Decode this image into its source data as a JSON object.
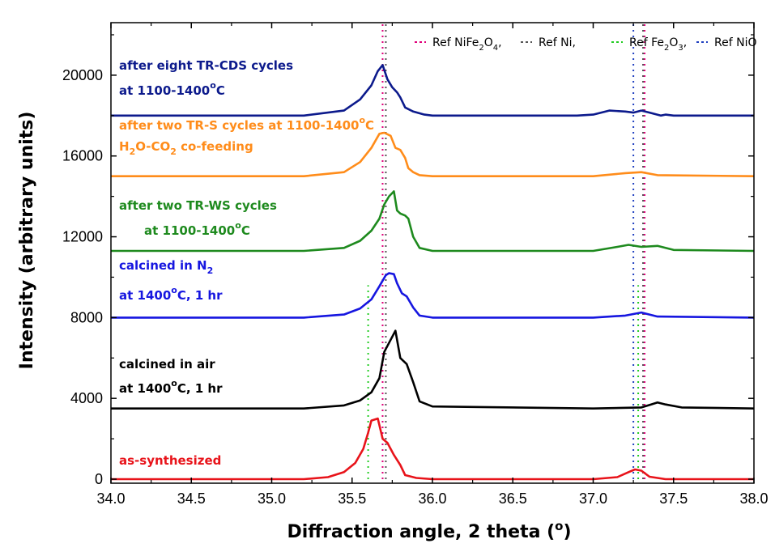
{
  "chart_data": {
    "type": "line",
    "xlabel": "Diffraction angle, 2 theta (°)",
    "ylabel": "Intensity (arbitrary units)",
    "xlim": [
      34.0,
      38.0
    ],
    "ylim": [
      -200,
      22600
    ],
    "xticks": [
      "34.0",
      "34.5",
      "35.0",
      "35.5",
      "36.0",
      "36.5",
      "37.0",
      "37.5",
      "38.0"
    ],
    "yticks": [
      "0",
      "4000",
      "8000",
      "12000",
      "16000",
      "20000"
    ],
    "grid": false,
    "legend_position": "top-right",
    "reference_lines": [
      {
        "name": "Ref NiFe2O4,",
        "color": "#e0007a",
        "positions": [
          35.69,
          37.32
        ]
      },
      {
        "name": "Ref Ni,",
        "color": "#555555",
        "positions": [
          35.71,
          37.31
        ]
      },
      {
        "name": "Ref Fe2O3,",
        "color": "#22cc22",
        "positions": [
          35.6,
          37.28
        ],
        "y_range": [
          0,
          9600
        ]
      },
      {
        "name": "Ref NiO",
        "color": "#2040c0",
        "positions": [
          37.25
        ]
      }
    ],
    "series": [
      {
        "name": "as-synthesized",
        "color": "#e8131a",
        "x": [
          34.0,
          35.2,
          35.35,
          35.45,
          35.52,
          35.57,
          35.6,
          35.62,
          35.66,
          35.69,
          35.72,
          35.76,
          35.8,
          35.83,
          35.9,
          36.0,
          36.5,
          37.0,
          37.15,
          37.22,
          37.26,
          37.3,
          37.35,
          37.45,
          38.0
        ],
        "y": [
          0,
          0,
          100,
          350,
          800,
          1500,
          2300,
          2900,
          3000,
          2000,
          1800,
          1200,
          700,
          200,
          60,
          0,
          0,
          0,
          100,
          350,
          480,
          420,
          120,
          0,
          0
        ]
      },
      {
        "name": "calcined in air",
        "color": "#000000",
        "x": [
          34.0,
          35.2,
          35.45,
          35.55,
          35.62,
          35.67,
          35.7,
          35.74,
          35.77,
          35.8,
          35.84,
          35.88,
          35.92,
          36.0,
          37.0,
          37.3,
          37.36,
          37.4,
          37.45,
          37.55,
          38.0
        ],
        "y": [
          3500,
          3500,
          3650,
          3900,
          4300,
          5000,
          6300,
          6900,
          7350,
          6000,
          5700,
          4800,
          3850,
          3600,
          3500,
          3550,
          3700,
          3800,
          3700,
          3550,
          3500
        ]
      },
      {
        "name": "calcined in N2",
        "color": "#1616e0",
        "x": [
          34.0,
          35.2,
          35.45,
          35.55,
          35.62,
          35.67,
          35.71,
          35.73,
          35.76,
          35.78,
          35.81,
          35.84,
          35.88,
          35.92,
          36.0,
          37.0,
          37.2,
          37.3,
          37.4,
          38.0
        ],
        "y": [
          8000,
          8000,
          8150,
          8450,
          8900,
          9550,
          10100,
          10200,
          10150,
          9700,
          9200,
          9050,
          8500,
          8100,
          8000,
          8000,
          8100,
          8250,
          8050,
          8000
        ]
      },
      {
        "name": "after two TR-WS cycles at 1100-1400°C",
        "color": "#1e8a1e",
        "x": [
          34.0,
          35.2,
          35.45,
          35.55,
          35.62,
          35.67,
          35.7,
          35.73,
          35.76,
          35.78,
          35.8,
          35.83,
          35.85,
          35.88,
          35.92,
          36.0,
          37.0,
          37.15,
          37.22,
          37.3,
          37.4,
          37.5,
          38.0
        ],
        "y": [
          11300,
          11300,
          11450,
          11800,
          12300,
          12900,
          13600,
          14000,
          14250,
          13300,
          13150,
          13050,
          12900,
          12000,
          11450,
          11300,
          11300,
          11500,
          11600,
          11500,
          11550,
          11350,
          11300
        ]
      },
      {
        "name": "after two TR-S cycles at 1100-1400°C H2O-CO2 co-feeding",
        "color": "#ff8c1a",
        "x": [
          34.0,
          35.2,
          35.45,
          35.55,
          35.62,
          35.67,
          35.7,
          35.74,
          35.77,
          35.8,
          35.83,
          35.85,
          35.88,
          35.92,
          36.0,
          37.0,
          37.2,
          37.3,
          37.4,
          38.0
        ],
        "y": [
          15000,
          15000,
          15200,
          15700,
          16400,
          17100,
          17150,
          17000,
          16400,
          16300,
          15900,
          15400,
          15200,
          15050,
          15000,
          15000,
          15150,
          15200,
          15050,
          15000
        ]
      },
      {
        "name": "after eight TR-CDS cycles at 1100-1400°C",
        "color": "#0c1a8c",
        "x": [
          34.0,
          35.2,
          35.45,
          35.55,
          35.62,
          35.66,
          35.69,
          35.72,
          35.75,
          35.78,
          35.8,
          35.83,
          35.88,
          35.95,
          36.0,
          36.9,
          37.0,
          37.1,
          37.2,
          37.25,
          37.3,
          37.35,
          37.42,
          37.45,
          37.5,
          38.0
        ],
        "y": [
          18000,
          18000,
          18250,
          18800,
          19500,
          20200,
          20500,
          19800,
          19400,
          19150,
          18900,
          18400,
          18200,
          18050,
          18000,
          18000,
          18050,
          18250,
          18200,
          18150,
          18250,
          18150,
          18000,
          18050,
          18000,
          18000
        ]
      }
    ],
    "annotations": [
      {
        "id": "a1",
        "lines": [
          [
            "after eight TR-CDS cycles"
          ],
          [
            "at 1100-1400",
            {
              "sup": "o"
            },
            "C"
          ]
        ],
        "color": "#0c1a8c"
      },
      {
        "id": "a2",
        "lines": [
          [
            "after two TR-S cycles at 1100-1400",
            {
              "sup": "o"
            },
            "C"
          ],
          [
            "H",
            {
              "sub": "2"
            },
            "O-CO",
            {
              "sub": "2"
            },
            " co-feeding"
          ]
        ],
        "color": "#ff8c1a"
      },
      {
        "id": "a3",
        "lines": [
          [
            "after two TR-WS cycles"
          ],
          [
            "at 1100-1400",
            {
              "sup": "o"
            },
            "C"
          ]
        ],
        "color": "#1e8a1e"
      },
      {
        "id": "a4",
        "lines": [
          [
            "calcined in N",
            {
              "sub": "2"
            }
          ],
          [
            "at 1400",
            {
              "sup": "o"
            },
            "C, 1 hr"
          ]
        ],
        "color": "#1616e0"
      },
      {
        "id": "a5",
        "lines": [
          [
            "calcined in air"
          ],
          [
            "at 1400",
            {
              "sup": "o"
            },
            "C, 1 hr"
          ]
        ],
        "color": "#000000"
      },
      {
        "id": "a6",
        "lines": [
          [
            "as-synthesized"
          ]
        ],
        "color": "#e8131a"
      }
    ]
  }
}
